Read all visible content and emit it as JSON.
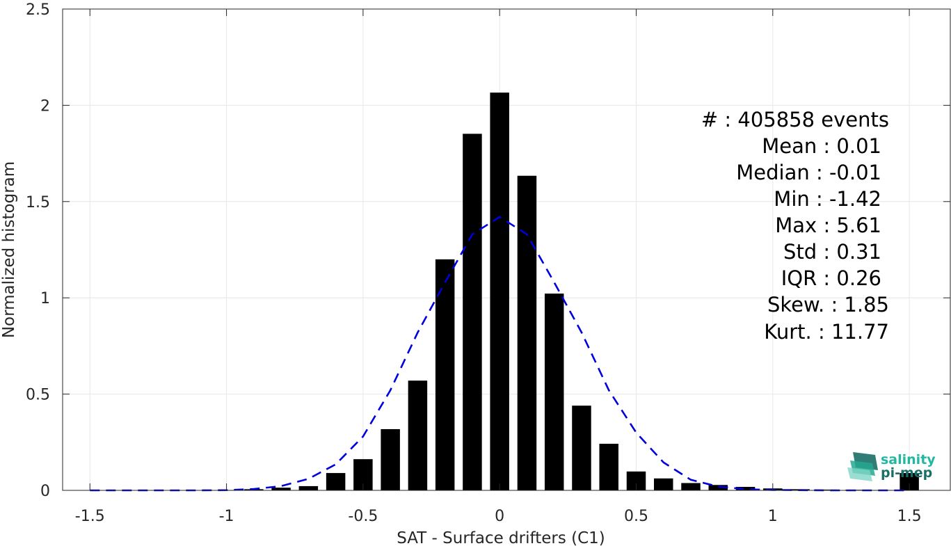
{
  "chart_data": {
    "type": "bar",
    "xlabel": "SAT - Surface drifters (C1)",
    "ylabel": "Normalized histogram",
    "xlim": [
      -1.6,
      1.65
    ],
    "ylim": [
      0,
      2.5
    ],
    "xticks": [
      -1.5,
      -1,
      -0.5,
      0,
      0.5,
      1,
      1.5
    ],
    "xtick_labels": [
      "-1.5",
      "-1",
      "-0.5",
      "0",
      "0.5",
      "1",
      "1.5"
    ],
    "yticks": [
      0,
      0.5,
      1,
      1.5,
      2,
      2.5
    ],
    "ytick_labels": [
      "0",
      "0.5",
      "1",
      "1.5",
      "2",
      "2.5"
    ],
    "grid": true,
    "bar_width": 0.07,
    "bars": {
      "x": [
        -1.5,
        -1.4,
        -1.3,
        -1.2,
        -1.1,
        -1.0,
        -0.9,
        -0.8,
        -0.7,
        -0.6,
        -0.5,
        -0.4,
        -0.3,
        -0.2,
        -0.1,
        0.0,
        0.1,
        0.2,
        0.3,
        0.4,
        0.5,
        0.6,
        0.7,
        0.8,
        0.9,
        1.0,
        1.1,
        1.2,
        1.3,
        1.4,
        1.5
      ],
      "values": [
        0,
        0,
        0,
        0,
        0,
        0.002,
        0.006,
        0.014,
        0.022,
        0.09,
        0.162,
        0.318,
        0.57,
        1.2,
        1.852,
        2.066,
        1.634,
        1.022,
        0.44,
        0.242,
        0.098,
        0.062,
        0.038,
        0.028,
        0.018,
        0.01,
        0.006,
        0.004,
        0.003,
        0.002,
        0.09
      ],
      "color": "#000000"
    },
    "fit": {
      "style": "dashed",
      "color": "#0000dd",
      "x": [
        -1.5,
        -1.4,
        -1.3,
        -1.2,
        -1.1,
        -1.0,
        -0.9,
        -0.8,
        -0.7,
        -0.6,
        -0.5,
        -0.4,
        -0.3,
        -0.2,
        -0.1,
        0.0,
        0.1,
        0.2,
        0.3,
        0.4,
        0.5,
        0.6,
        0.7,
        0.8,
        0.9,
        1.0,
        1.1,
        1.2,
        1.3,
        1.4,
        1.5
      ],
      "values": [
        0.0,
        0.0,
        0.0,
        0.0,
        0.0,
        0.001,
        0.007,
        0.022,
        0.06,
        0.135,
        0.28,
        0.52,
        0.82,
        1.08,
        1.33,
        1.42,
        1.33,
        1.08,
        0.82,
        0.52,
        0.3,
        0.145,
        0.055,
        0.02,
        0.006,
        0.002,
        0.001,
        0.0,
        0.0,
        0.0,
        0.0
      ]
    },
    "annotation": {
      "count": "#  : 405858 events",
      "mean": "Mean : 0.01",
      "median": "Median : -0.01",
      "min": "Min : -1.42",
      "max": "Max : 5.61",
      "std": "Std : 0.31",
      "iqr": "IQR : 0.26",
      "skew": "Skew. : 1.85",
      "kurt": "Kurt. : 11.77"
    }
  },
  "logo": {
    "line1": "salinity",
    "line2": "pi-mep",
    "color1": "#22b8a0",
    "color2": "#1a6f66"
  }
}
